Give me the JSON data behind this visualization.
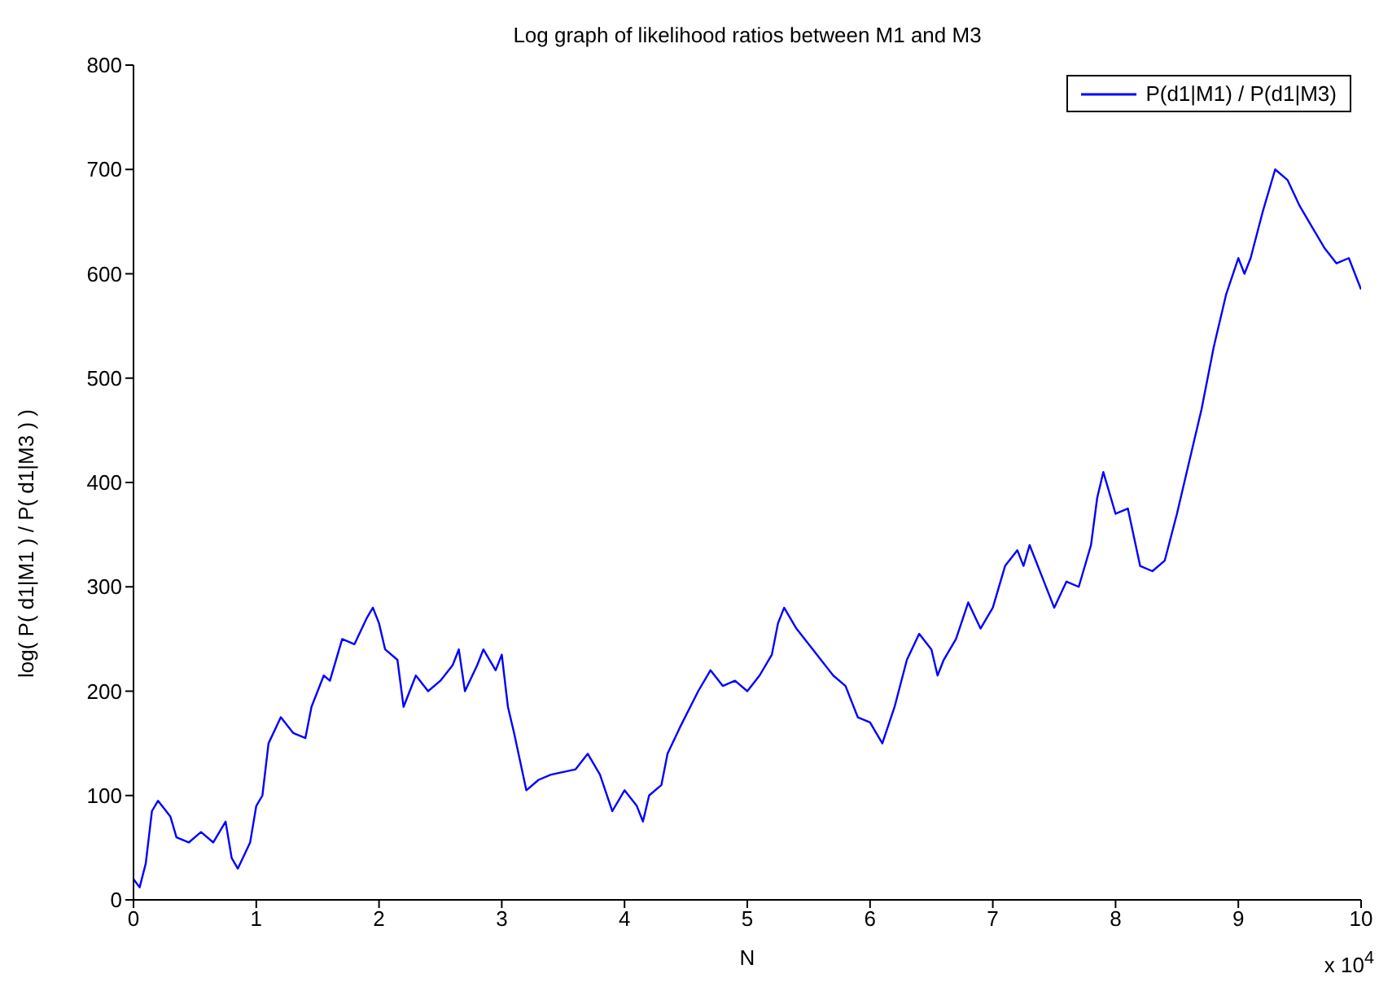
{
  "chart_data": {
    "type": "line",
    "title": "Log graph of likelihood ratios between M1 and M3",
    "xlabel": "N",
    "ylabel": "log( P( d1|M1 ) / P( d1|M3 ) )",
    "annotations": [
      "x 10$^{4}$"
    ],
    "x": [
      0,
      0.05,
      0.1,
      0.15,
      0.2,
      0.3,
      0.35,
      0.45,
      0.55,
      0.65,
      0.75,
      0.8,
      0.85,
      0.95,
      1,
      1.05,
      1.1,
      1.2,
      1.3,
      1.4,
      1.45,
      1.55,
      1.6,
      1.7,
      1.8,
      1.9,
      1.95,
      2,
      2.05,
      2.15,
      2.2,
      2.3,
      2.4,
      2.5,
      2.6,
      2.65,
      2.7,
      2.8,
      2.85,
      2.95,
      3,
      3.05,
      3.1,
      3.2,
      3.3,
      3.4,
      3.6,
      3.7,
      3.8,
      3.9,
      4,
      4.1,
      4.15,
      4.2,
      4.3,
      4.35,
      4.45,
      4.6,
      4.7,
      4.8,
      4.9,
      5,
      5.1,
      5.2,
      5.25,
      5.3,
      5.4,
      5.5,
      5.6,
      5.7,
      5.8,
      5.9,
      6,
      6.05,
      6.1,
      6.2,
      6.3,
      6.4,
      6.5,
      6.55,
      6.6,
      6.7,
      6.8,
      6.9,
      7,
      7.1,
      7.2,
      7.25,
      7.3,
      7.4,
      7.5,
      7.6,
      7.7,
      7.8,
      7.85,
      7.9,
      8,
      8.1,
      8.2,
      8.3,
      8.4,
      8.5,
      8.6,
      8.7,
      8.8,
      8.9,
      9,
      9.05,
      9.1,
      9.2,
      9.3,
      9.4,
      9.5,
      9.6,
      9.7,
      9.8,
      9.9,
      10
    ],
    "series": [
      {
        "name": "P(d1|M1) / P(d1|M3)",
        "color": "#0000ff",
        "values": [
          20,
          12,
          35,
          85,
          95,
          80,
          60,
          55,
          65,
          55,
          75,
          40,
          30,
          55,
          90,
          100,
          150,
          175,
          160,
          155,
          185,
          215,
          210,
          250,
          245,
          270,
          280,
          265,
          240,
          230,
          185,
          215,
          200,
          210,
          225,
          240,
          200,
          225,
          240,
          220,
          235,
          185,
          160,
          105,
          115,
          120,
          125,
          140,
          120,
          85,
          105,
          90,
          75,
          100,
          110,
          140,
          165,
          200,
          220,
          205,
          210,
          200,
          215,
          235,
          265,
          280,
          260,
          245,
          230,
          215,
          205,
          175,
          170,
          160,
          150,
          185,
          230,
          255,
          240,
          215,
          230,
          250,
          285,
          260,
          280,
          320,
          335,
          320,
          340,
          310,
          280,
          305,
          300,
          340,
          385,
          410,
          370,
          375,
          320,
          315,
          325,
          370,
          420,
          470,
          530,
          580,
          615,
          600,
          615,
          660,
          700,
          690,
          665,
          645,
          625,
          610,
          615,
          585
        ]
      }
    ],
    "xlim": [
      0,
      10
    ],
    "xticks": [
      0,
      1,
      2,
      3,
      4,
      5,
      6,
      7,
      8,
      9,
      10
    ],
    "ylim": [
      0,
      800
    ],
    "yticks": [
      0,
      100,
      200,
      300,
      400,
      500,
      600,
      700,
      800
    ],
    "legend": "top right",
    "marker": "none",
    "line_style": "solid",
    "grid": false
  }
}
